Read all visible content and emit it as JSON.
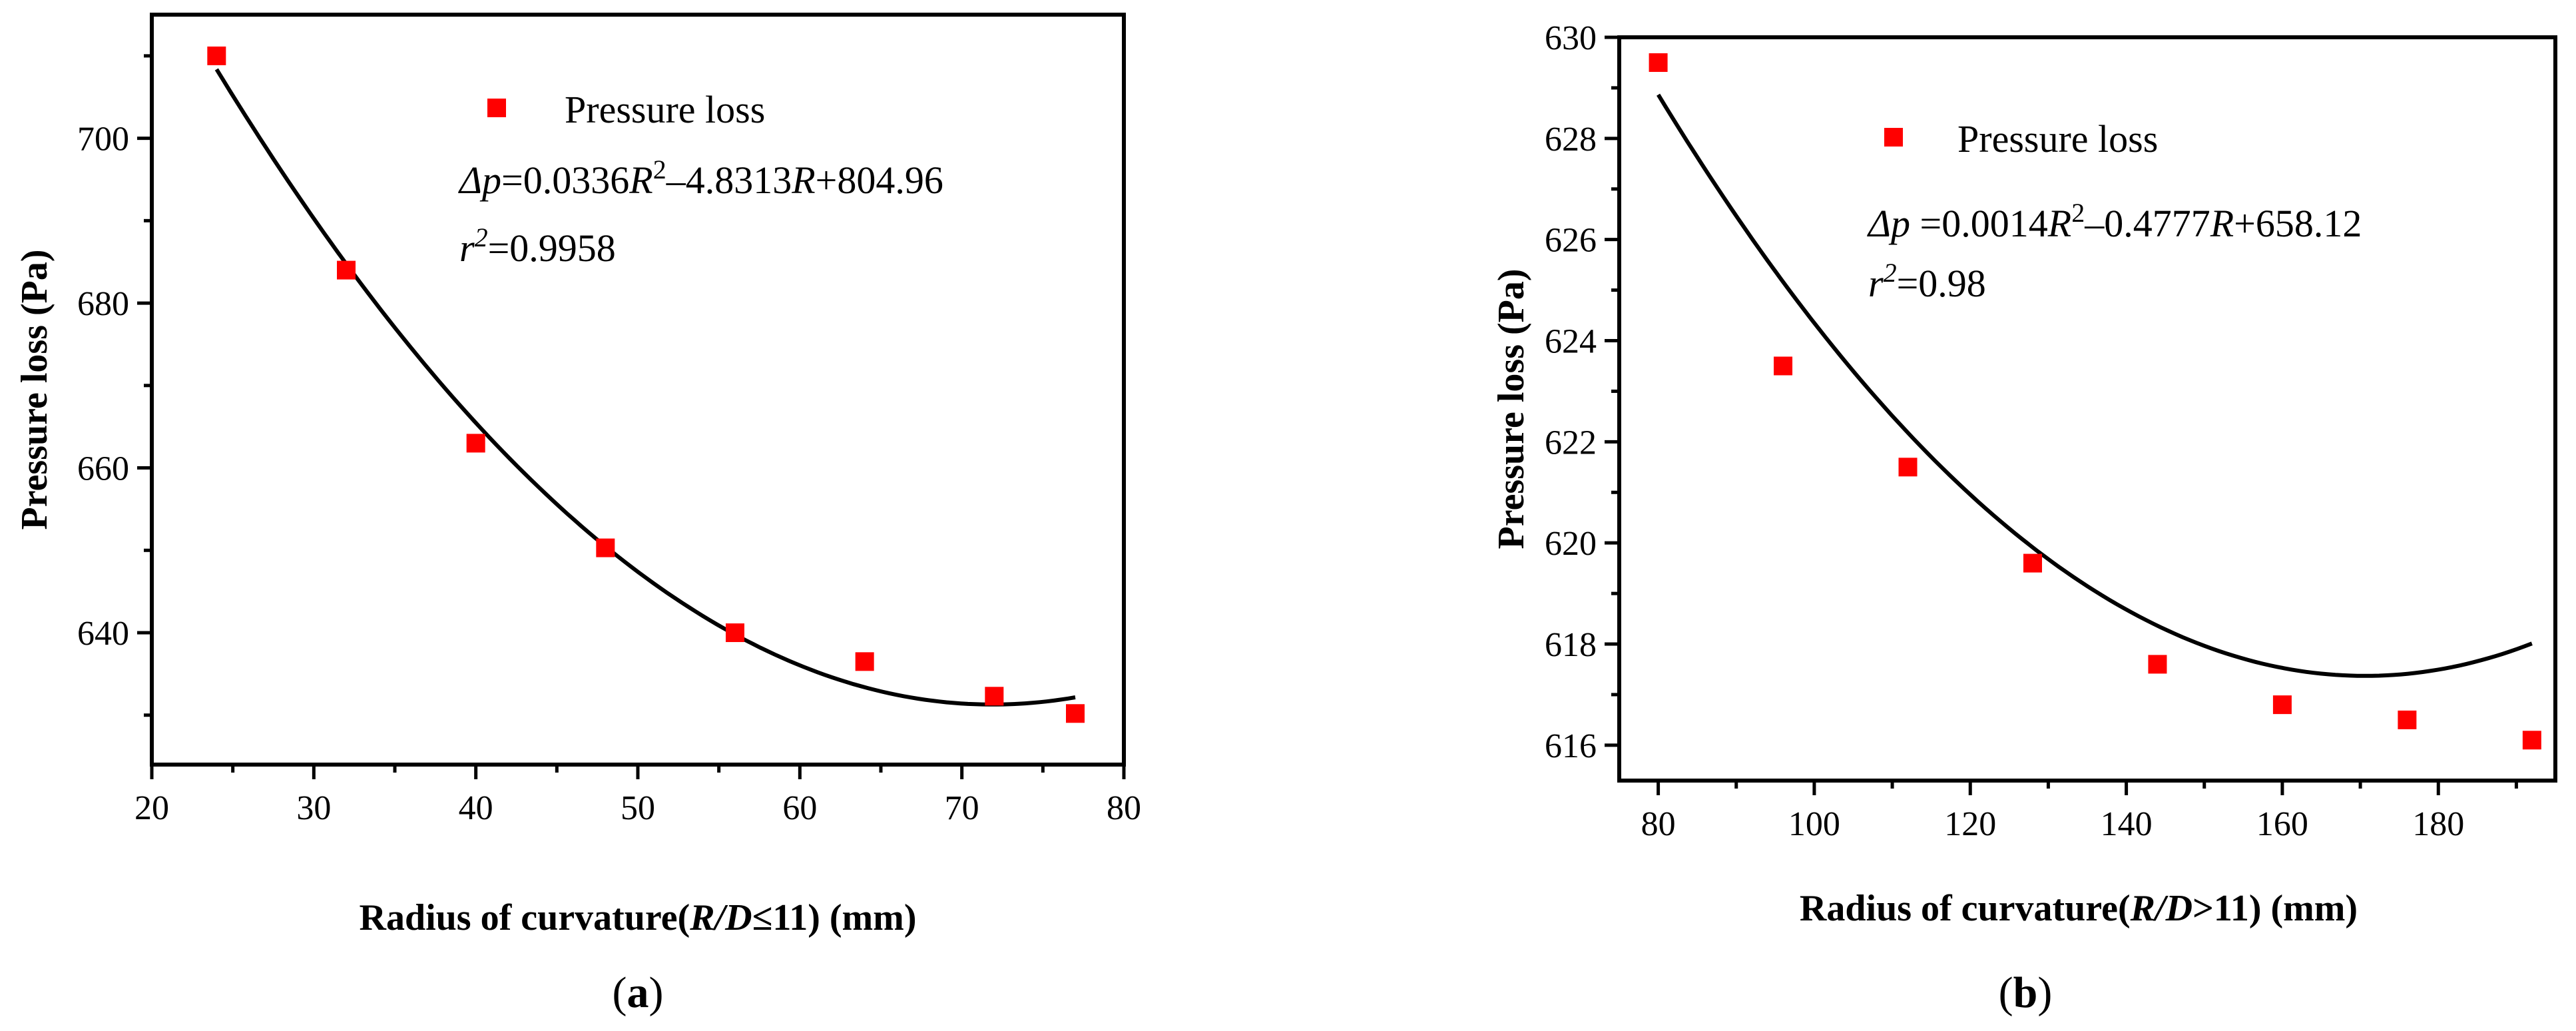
{
  "chart_data": [
    {
      "type": "scatter",
      "panel_label": "a",
      "xlabel": "Radius of curvature(R/D≤11) (mm)",
      "ylabel": "Pressure loss (Pa)",
      "xlim": [
        20,
        80
      ],
      "ylim": [
        624,
        715
      ],
      "xticks": [
        20,
        30,
        40,
        50,
        60,
        70,
        80
      ],
      "yticks": [
        640,
        660,
        680,
        700
      ],
      "series": [
        {
          "name": "Pressure loss",
          "color": "#ff0000",
          "marker": "square",
          "x": [
            24,
            32,
            40,
            48,
            56,
            64,
            72,
            77
          ],
          "y": [
            710,
            684,
            663,
            650.3,
            640,
            636.5,
            632.3,
            630.2
          ]
        }
      ],
      "fit": {
        "coefficients": [
          0.0336,
          -4.8313,
          804.96
        ],
        "x_range": [
          24,
          77
        ],
        "color": "#000000"
      },
      "legend": {
        "label": "Pressure loss",
        "position": "top-center"
      },
      "equation": {
        "lhs": "Δp",
        "eq_a": "=0.0336",
        "var1": "R",
        "sup": "2",
        "eq_b": "–4.8313",
        "var2": "R",
        "eq_c": "+804.96"
      },
      "r_squared": {
        "var": "r",
        "sup": "2",
        "value": "=0.9958"
      }
    },
    {
      "type": "scatter",
      "panel_label": "b",
      "xlabel": "Radius of curvature(R/D>11) (mm)",
      "ylabel": "Pressure loss (Pa)",
      "xlim": [
        75,
        195
      ],
      "ylim": [
        615.3,
        630
      ],
      "xticks": [
        80,
        100,
        120,
        140,
        160,
        180
      ],
      "yticks": [
        616,
        618,
        620,
        622,
        624,
        626,
        628,
        630
      ],
      "series": [
        {
          "name": "Pressure loss",
          "color": "#ff0000",
          "marker": "square",
          "x": [
            80,
            96,
            112,
            128,
            144,
            160,
            176,
            192
          ],
          "y": [
            629.5,
            623.5,
            621.5,
            619.6,
            617.6,
            616.8,
            616.5,
            616.1
          ]
        }
      ],
      "fit": {
        "coefficients": [
          0.0014,
          -0.4777,
          658.12
        ],
        "x_range": [
          80,
          192
        ],
        "color": "#000000"
      },
      "legend": {
        "label": "Pressure loss",
        "position": "top-center"
      },
      "equation": {
        "lhs": "Δp",
        "eq_a": " =0.0014",
        "var1": "R",
        "sup": "2",
        "eq_b": "–0.4777",
        "var2": "R",
        "eq_c": "+658.12"
      },
      "r_squared": {
        "var": "r",
        "sup": "2",
        "value": "=0.98"
      }
    }
  ],
  "panels": {
    "a": {
      "xlabel_pre": "Radius of curvature(",
      "xlabel_var": "R/D",
      "xlabel_post": "≤11) (mm)",
      "label_open": "(",
      "label_close": ")"
    },
    "b": {
      "xlabel_pre": "Radius of curvature(",
      "xlabel_var": "R/D",
      "xlabel_post": ">11) (mm)",
      "label_open": "(",
      "label_close": ")"
    }
  }
}
